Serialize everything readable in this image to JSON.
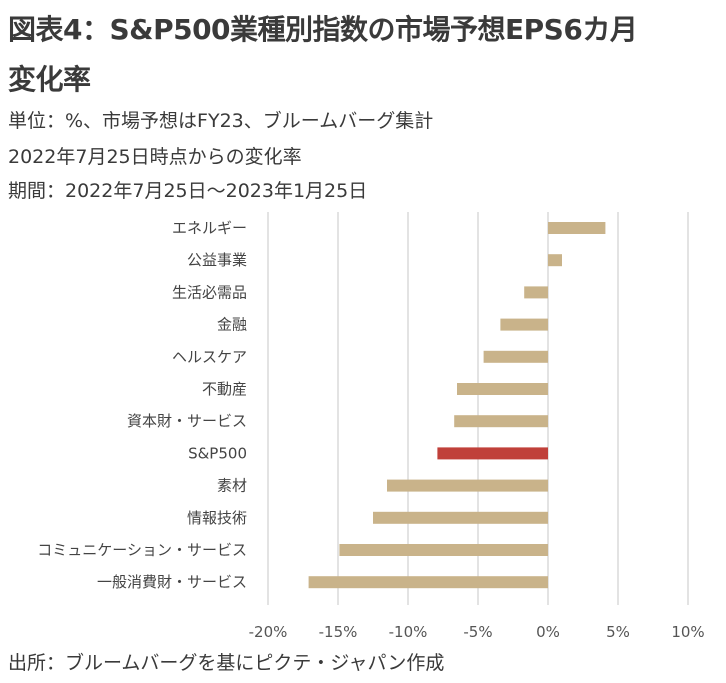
{
  "header": {
    "title_line1": "図表4：S&P500業種別指数の市場予想EPS6カ月",
    "title_line2": "変化率",
    "subtitle_lines": [
      "単位：%、市場予想はFY23、ブルームバーグ集計",
      "2022年7月25日時点からの変化率",
      "期間：2022年7月25日～2023年1月25日"
    ]
  },
  "footer": {
    "source": "出所：ブルームバーグを基にピクテ・ジャパン作成"
  },
  "colors": {
    "bar": "#c9b38a",
    "highlight": "#c0403a",
    "grid": "#e3e3e3"
  },
  "chart_data": {
    "type": "bar",
    "orientation": "horizontal",
    "title": "S&P500業種別指数の市場予想EPS6カ月変化率",
    "xlabel": "",
    "ylabel": "",
    "unit": "%",
    "xlim": [
      -20,
      10
    ],
    "xticks": [
      -20,
      -15,
      -10,
      -5,
      0,
      5,
      10
    ],
    "xtick_labels": [
      "-20%",
      "-15%",
      "-10%",
      "-5%",
      "0%",
      "5%",
      "10%"
    ],
    "grid": true,
    "categories": [
      "エネルギー",
      "公益事業",
      "生活必需品",
      "金融",
      "ヘルスケア",
      "不動産",
      "資本財・サービス",
      "S&P500",
      "素材",
      "情報技術",
      "コミュニケーション・サービス",
      "一般消費財・サービス"
    ],
    "values": [
      4.1,
      1.0,
      -1.7,
      -3.4,
      -4.6,
      -6.5,
      -6.7,
      -7.9,
      -11.5,
      -12.5,
      -14.9,
      -17.1
    ],
    "highlight": "S&P500"
  }
}
